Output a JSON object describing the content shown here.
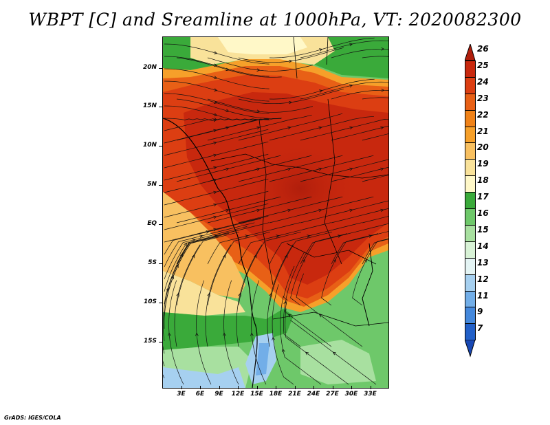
{
  "title": "WBPT [C] and Sreamline at 1000hPa, VT: 2020082300",
  "footer": "GrADS: IGES/COLA",
  "map": {
    "lon_range": [
      0,
      36
    ],
    "lat_range": [
      -21,
      24
    ],
    "lat_ticks": [
      "20N",
      "15N",
      "10N",
      "5N",
      "EQ",
      "5S",
      "10S",
      "15S"
    ],
    "lat_values": [
      20,
      15,
      10,
      5,
      0,
      -5,
      -10,
      -15
    ],
    "lon_ticks": [
      "3E",
      "6E",
      "9E",
      "12E",
      "15E",
      "18E",
      "21E",
      "24E",
      "27E",
      "30E",
      "33E"
    ],
    "lon_values": [
      3,
      6,
      9,
      12,
      15,
      18,
      21,
      24,
      27,
      30,
      33
    ]
  },
  "colorbar": {
    "labels": [
      "26",
      "25",
      "24",
      "23",
      "22",
      "21",
      "20",
      "19",
      "18",
      "17",
      "16",
      "15",
      "14",
      "13",
      "12",
      "11",
      "9",
      "7"
    ],
    "colors": [
      "#b01e0c",
      "#c8280e",
      "#dc3e12",
      "#e86016",
      "#f08218",
      "#f6a02a",
      "#f8c060",
      "#f9e29a",
      "#fff8c8",
      "#3aaa3a",
      "#6ec86a",
      "#a8e0a0",
      "#d8f2d6",
      "#e4f4f4",
      "#a6d0f0",
      "#72aee8",
      "#4488dc",
      "#2260c8",
      "#1848b4"
    ]
  }
}
